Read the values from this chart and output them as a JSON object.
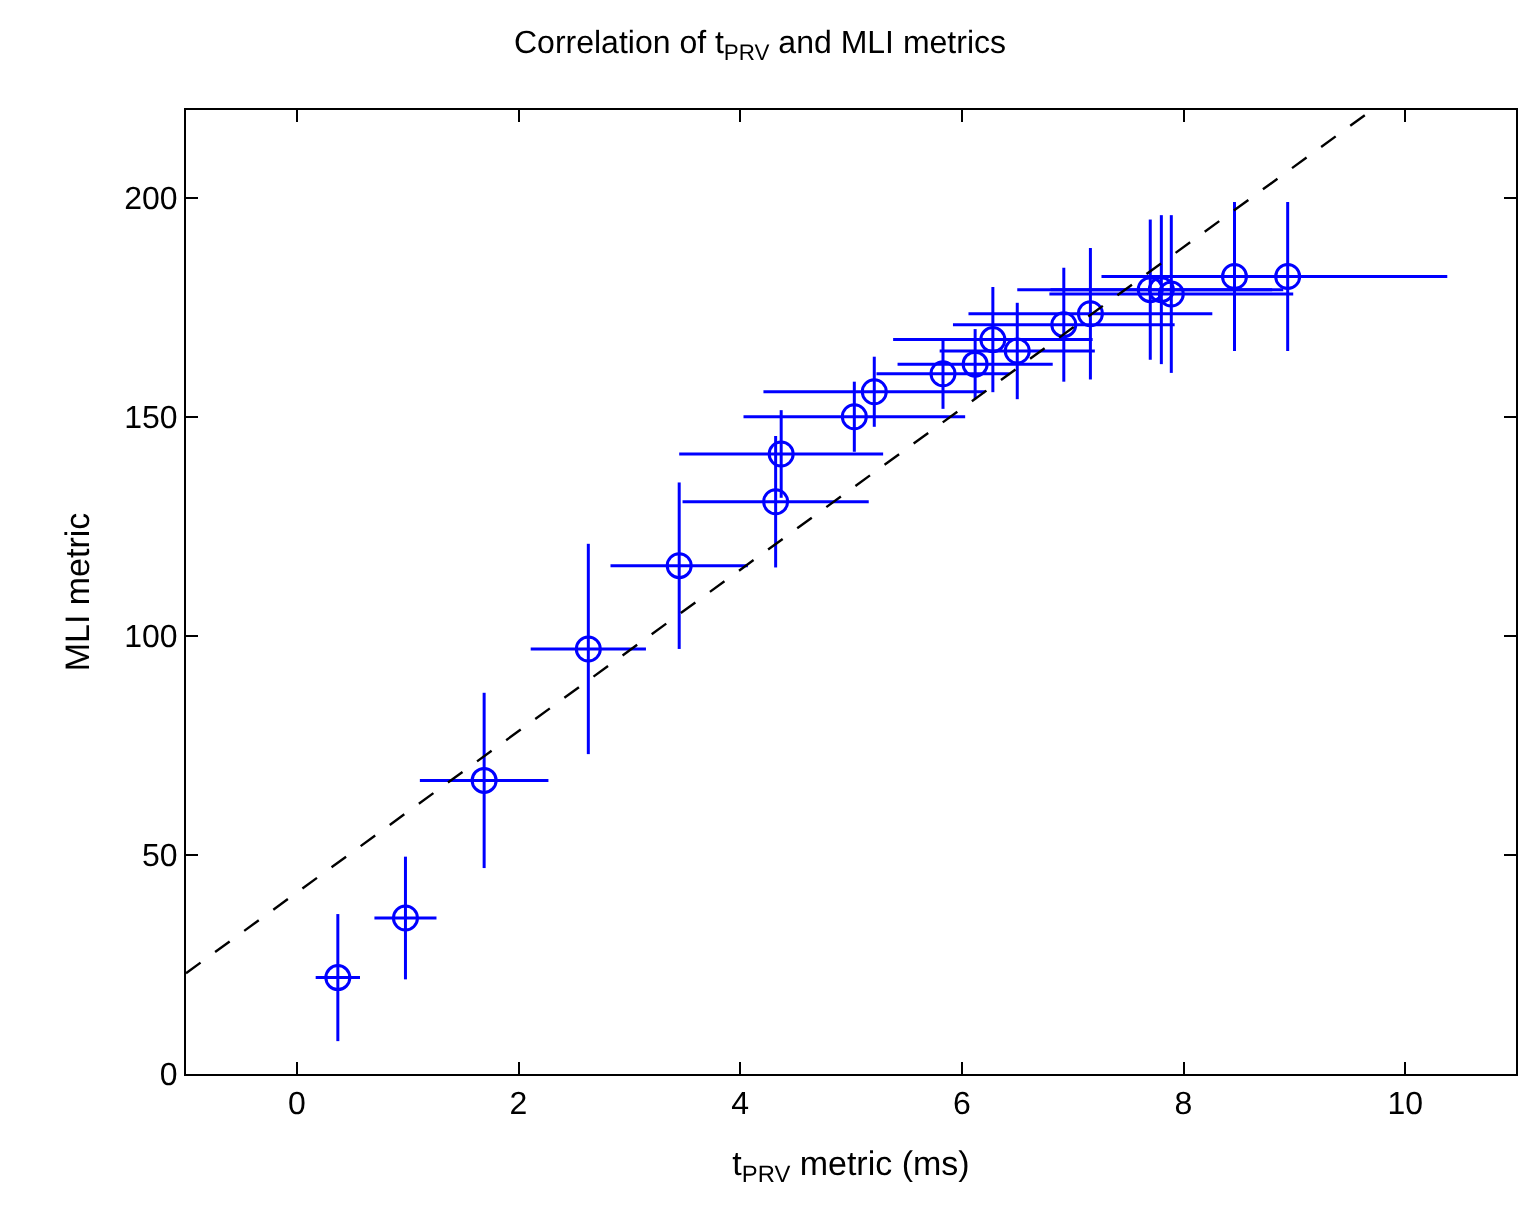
{
  "chart_data": {
    "type": "scatter",
    "title": "Correlation of t$_{PRV}$ and MLI metrics",
    "xlabel": "t$_{PRV}$ metric (ms)",
    "ylabel": "MLI metric",
    "xlim": [
      -1,
      11
    ],
    "ylim": [
      0,
      220
    ],
    "xticks": [
      0,
      2,
      4,
      6,
      8,
      10
    ],
    "yticks": [
      0,
      50,
      100,
      150,
      200
    ],
    "marker": "circle",
    "series": [
      {
        "color": "#0000ff",
        "x": [
          0.37,
          0.98,
          1.69,
          2.63,
          3.45,
          4.32,
          4.37,
          5.03,
          5.21,
          5.83,
          6.12,
          6.28,
          6.5,
          6.92,
          7.16,
          7.7,
          7.8,
          7.89,
          8.46,
          8.94
        ],
        "values": [
          22,
          35.6,
          67,
          97,
          116,
          130.6,
          141.5,
          150,
          155.7,
          159.8,
          162,
          167.6,
          165,
          171,
          173.5,
          179,
          179,
          178,
          182,
          182
        ],
        "errors": [
          14.5,
          14,
          20,
          24,
          19,
          15,
          10,
          8,
          8,
          8,
          8,
          12,
          11,
          13,
          15,
          16,
          17,
          18,
          17,
          17
        ],
        "xerrors": [
          0.2,
          0.28,
          0.58,
          0.52,
          0.62,
          0.84,
          0.92,
          1.0,
          1.0,
          0.6,
          0.7,
          0.9,
          0.7,
          1.0,
          1.1,
          1.2,
          1.0,
          1.1,
          1.2,
          1.44
        ]
      },
      {
        "type": "line",
        "color": "#000000",
        "line_style": "dashed",
        "marker": "none",
        "x": [
          -1,
          9.7
        ],
        "values": [
          23,
          220
        ]
      }
    ]
  }
}
